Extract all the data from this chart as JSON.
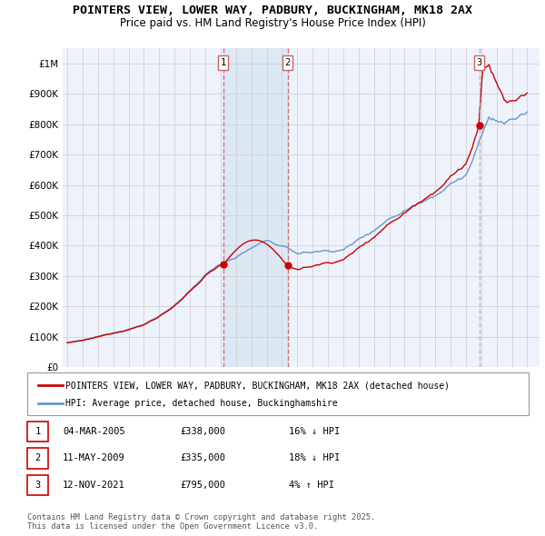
{
  "title": "POINTERS VIEW, LOWER WAY, PADBURY, BUCKINGHAM, MK18 2AX",
  "subtitle": "Price paid vs. HM Land Registry's House Price Index (HPI)",
  "legend_label_red": "POINTERS VIEW, LOWER WAY, PADBURY, BUCKINGHAM, MK18 2AX (detached house)",
  "legend_label_blue": "HPI: Average price, detached house, Buckinghamshire",
  "footnote": "Contains HM Land Registry data © Crown copyright and database right 2025.\nThis data is licensed under the Open Government Licence v3.0.",
  "transactions": [
    {
      "num": 1,
      "date": "04-MAR-2005",
      "price": "£338,000",
      "pct": "16% ↓ HPI",
      "year": 2005.17
    },
    {
      "num": 2,
      "date": "11-MAY-2009",
      "price": "£335,000",
      "pct": "18% ↓ HPI",
      "year": 2009.37
    },
    {
      "num": 3,
      "date": "12-NOV-2021",
      "price": "£795,000",
      "pct": "4% ↑ HPI",
      "year": 2021.87
    }
  ],
  "trans_prices": [
    338000,
    335000,
    795000
  ],
  "ylim": [
    0,
    1050000
  ],
  "yticks": [
    0,
    100000,
    200000,
    300000,
    400000,
    500000,
    600000,
    700000,
    800000,
    900000,
    1000000
  ],
  "ytick_labels": [
    "£0",
    "£100K",
    "£200K",
    "£300K",
    "£400K",
    "£500K",
    "£600K",
    "£700K",
    "£800K",
    "£900K",
    "£1M"
  ],
  "xlim_start": 1994.7,
  "xlim_end": 2025.8,
  "xticks": [
    1995,
    1996,
    1997,
    1998,
    1999,
    2000,
    2001,
    2002,
    2003,
    2004,
    2005,
    2006,
    2007,
    2008,
    2009,
    2010,
    2011,
    2012,
    2013,
    2014,
    2015,
    2016,
    2017,
    2018,
    2019,
    2020,
    2021,
    2022,
    2023,
    2024,
    2025
  ],
  "red_color": "#cc0000",
  "blue_color": "#6699cc",
  "vline_color_red": "#cc6666",
  "vline_color_gray": "#aaaaaa",
  "shade_color": "#dde8f5",
  "background_color": "#eef2fb",
  "grid_color": "#cccccc",
  "title_fontsize": 9.5,
  "subtitle_fontsize": 8.5
}
